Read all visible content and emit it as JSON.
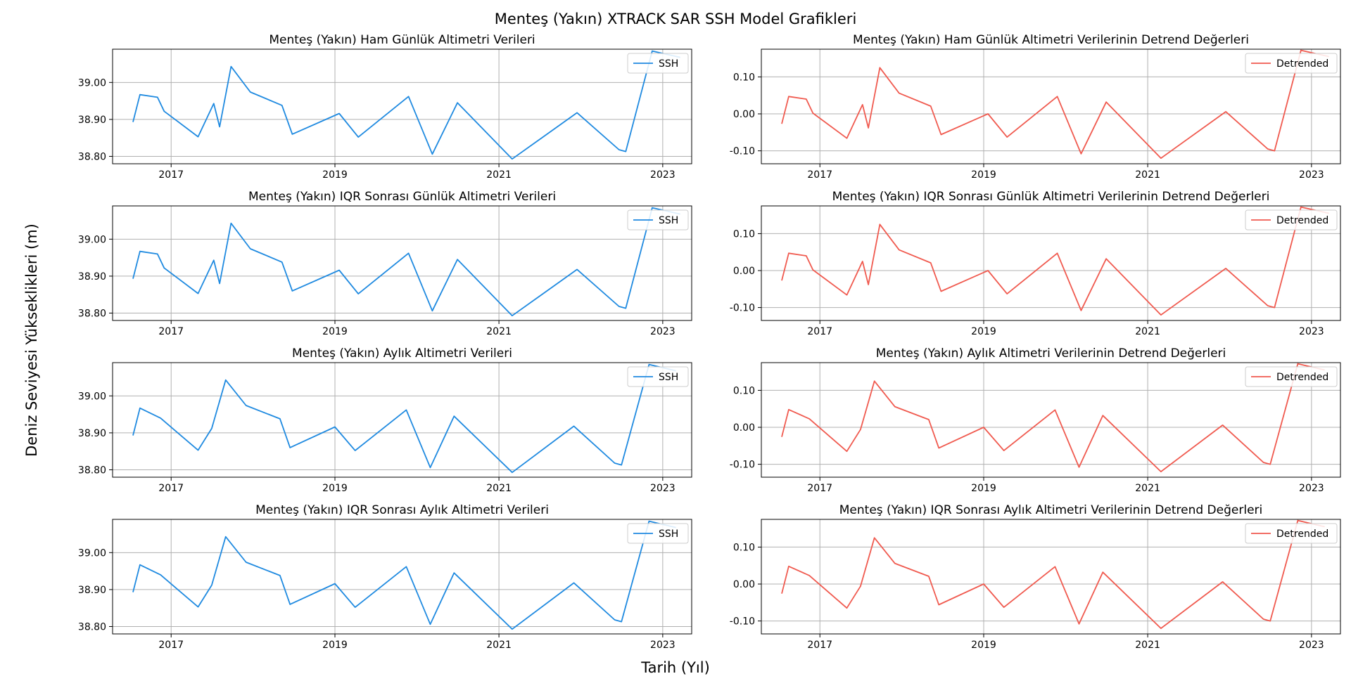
{
  "figure": {
    "title": "Menteş (Yakın) XTRACK SAR SSH Model Grafikleri",
    "xlabel": "Tarih (Yıl)",
    "ylabel": "Deniz Seviyesi Yükseklikleri (m)"
  },
  "colors": {
    "ssh": "#1f8ae0",
    "detrended": "#f05a4f",
    "grid": "#b0b0b0"
  },
  "chart_data": [
    {
      "type": "line",
      "title": "Menteş (Yakın) Ham Günlük Altimetri Verileri",
      "xlabel": "",
      "ylabel": "",
      "xlim": [
        "2016-04-15",
        "2023-05-10"
      ],
      "ylim": [
        38.78,
        39.09
      ],
      "yticks": [
        38.8,
        38.9,
        39.0
      ],
      "ytick_labels": [
        "38.80",
        "38.90",
        "39.00"
      ],
      "xticks": [
        "2017-01-01",
        "2019-01-01",
        "2021-01-01",
        "2023-01-01"
      ],
      "xtick_labels": [
        "2017",
        "2019",
        "2021",
        "2023"
      ],
      "grid": true,
      "legend_position": "top-right",
      "series": [
        {
          "name": "SSH",
          "color": "#1f8ae0",
          "x": [
            "2016-07-15",
            "2016-08-15",
            "2016-11-01",
            "2016-12-01",
            "2017-05-01",
            "2017-07-10",
            "2017-08-05",
            "2017-09-25",
            "2017-12-20",
            "2018-05-10",
            "2018-06-25",
            "2019-01-20",
            "2019-04-15",
            "2019-11-25",
            "2020-03-10",
            "2020-06-30",
            "2021-03-01",
            "2021-12-15",
            "2022-06-20",
            "2022-07-20",
            "2022-11-15",
            "2023-03-20"
          ],
          "y": [
            38.893,
            38.967,
            38.96,
            38.922,
            38.853,
            38.943,
            38.88,
            39.043,
            38.974,
            38.938,
            38.86,
            38.916,
            38.852,
            38.962,
            38.806,
            38.945,
            38.793,
            38.918,
            38.818,
            38.813,
            39.085,
            39.068
          ]
        }
      ]
    },
    {
      "type": "line",
      "title": "Menteş (Yakın) Ham Günlük Altimetri Verilerinin Detrend Değerleri",
      "xlabel": "",
      "ylabel": "",
      "xlim": [
        "2016-04-15",
        "2023-05-10"
      ],
      "ylim": [
        -0.135,
        0.175
      ],
      "yticks": [
        -0.1,
        0.0,
        0.1
      ],
      "ytick_labels": [
        "-0.10",
        "0.00",
        "0.10"
      ],
      "xticks": [
        "2017-01-01",
        "2019-01-01",
        "2021-01-01",
        "2023-01-01"
      ],
      "xtick_labels": [
        "2017",
        "2019",
        "2021",
        "2023"
      ],
      "grid": true,
      "legend_position": "top-right",
      "series": [
        {
          "name": "Detrended",
          "color": "#f05a4f",
          "x": [
            "2016-07-15",
            "2016-08-15",
            "2016-11-01",
            "2016-12-01",
            "2017-05-01",
            "2017-07-10",
            "2017-08-05",
            "2017-09-25",
            "2017-12-20",
            "2018-05-10",
            "2018-06-25",
            "2019-01-20",
            "2019-04-15",
            "2019-11-25",
            "2020-03-10",
            "2020-06-30",
            "2021-03-01",
            "2021-12-15",
            "2022-06-20",
            "2022-07-20",
            "2022-11-15",
            "2023-03-20"
          ],
          "y": [
            -0.027,
            0.047,
            0.04,
            0.002,
            -0.066,
            0.025,
            -0.038,
            0.125,
            0.056,
            0.021,
            -0.056,
            0.0,
            -0.063,
            0.047,
            -0.108,
            0.032,
            -0.12,
            0.006,
            -0.095,
            -0.1,
            0.172,
            0.155
          ]
        }
      ]
    },
    {
      "type": "line",
      "title": "Menteş (Yakın) IQR Sonrası Günlük Altimetri Verileri",
      "xlabel": "",
      "ylabel": "",
      "xlim": [
        "2016-04-15",
        "2023-05-10"
      ],
      "ylim": [
        38.78,
        39.09
      ],
      "yticks": [
        38.8,
        38.9,
        39.0
      ],
      "ytick_labels": [
        "38.80",
        "38.90",
        "39.00"
      ],
      "xticks": [
        "2017-01-01",
        "2019-01-01",
        "2021-01-01",
        "2023-01-01"
      ],
      "xtick_labels": [
        "2017",
        "2019",
        "2021",
        "2023"
      ],
      "grid": true,
      "legend_position": "top-right",
      "series": [
        {
          "name": "SSH",
          "color": "#1f8ae0",
          "x": [
            "2016-07-15",
            "2016-08-15",
            "2016-11-01",
            "2016-12-01",
            "2017-05-01",
            "2017-07-10",
            "2017-08-05",
            "2017-09-25",
            "2017-12-20",
            "2018-05-10",
            "2018-06-25",
            "2019-01-20",
            "2019-04-15",
            "2019-11-25",
            "2020-03-10",
            "2020-06-30",
            "2021-03-01",
            "2021-12-15",
            "2022-06-20",
            "2022-07-20",
            "2022-11-15",
            "2023-03-20"
          ],
          "y": [
            38.893,
            38.967,
            38.96,
            38.922,
            38.853,
            38.943,
            38.88,
            39.043,
            38.974,
            38.938,
            38.86,
            38.916,
            38.852,
            38.962,
            38.806,
            38.945,
            38.793,
            38.918,
            38.818,
            38.813,
            39.085,
            39.068
          ]
        }
      ]
    },
    {
      "type": "line",
      "title": "Menteş (Yakın) IQR Sonrası Günlük Altimetri Verilerinin Detrend Değerleri",
      "xlabel": "",
      "ylabel": "",
      "xlim": [
        "2016-04-15",
        "2023-05-10"
      ],
      "ylim": [
        -0.135,
        0.175
      ],
      "yticks": [
        -0.1,
        0.0,
        0.1
      ],
      "ytick_labels": [
        "-0.10",
        "0.00",
        "0.10"
      ],
      "xticks": [
        "2017-01-01",
        "2019-01-01",
        "2021-01-01",
        "2023-01-01"
      ],
      "xtick_labels": [
        "2017",
        "2019",
        "2021",
        "2023"
      ],
      "grid": true,
      "legend_position": "top-right",
      "series": [
        {
          "name": "Detrended",
          "color": "#f05a4f",
          "x": [
            "2016-07-15",
            "2016-08-15",
            "2016-11-01",
            "2016-12-01",
            "2017-05-01",
            "2017-07-10",
            "2017-08-05",
            "2017-09-25",
            "2017-12-20",
            "2018-05-10",
            "2018-06-25",
            "2019-01-20",
            "2019-04-15",
            "2019-11-25",
            "2020-03-10",
            "2020-06-30",
            "2021-03-01",
            "2021-12-15",
            "2022-06-20",
            "2022-07-20",
            "2022-11-15",
            "2023-03-20"
          ],
          "y": [
            -0.027,
            0.047,
            0.04,
            0.002,
            -0.066,
            0.025,
            -0.038,
            0.125,
            0.056,
            0.021,
            -0.056,
            0.0,
            -0.063,
            0.047,
            -0.108,
            0.032,
            -0.12,
            0.006,
            -0.095,
            -0.1,
            0.172,
            0.155
          ]
        }
      ]
    },
    {
      "type": "line",
      "title": "Menteş (Yakın) Aylık Altimetri Verileri",
      "xlabel": "",
      "ylabel": "",
      "xlim": [
        "2016-04-15",
        "2023-05-10"
      ],
      "ylim": [
        38.78,
        39.09
      ],
      "yticks": [
        38.8,
        38.9,
        39.0
      ],
      "ytick_labels": [
        "38.80",
        "38.90",
        "39.00"
      ],
      "xticks": [
        "2017-01-01",
        "2019-01-01",
        "2021-01-01",
        "2023-01-01"
      ],
      "xtick_labels": [
        "2017",
        "2019",
        "2021",
        "2023"
      ],
      "grid": true,
      "legend_position": "top-right",
      "series": [
        {
          "name": "SSH",
          "color": "#1f8ae0",
          "x": [
            "2016-07-15",
            "2016-08-15",
            "2016-11-15",
            "2017-05-01",
            "2017-07-01",
            "2017-09-01",
            "2017-12-01",
            "2018-05-01",
            "2018-06-15",
            "2019-01-01",
            "2019-04-01",
            "2019-11-15",
            "2020-03-01",
            "2020-06-15",
            "2021-03-01",
            "2021-12-01",
            "2022-06-01",
            "2022-07-01",
            "2022-11-01",
            "2023-03-01"
          ],
          "y": [
            38.893,
            38.967,
            38.94,
            38.853,
            38.912,
            39.043,
            38.974,
            38.938,
            38.86,
            38.916,
            38.852,
            38.962,
            38.806,
            38.945,
            38.793,
            38.918,
            38.818,
            38.813,
            39.085,
            39.068
          ]
        }
      ]
    },
    {
      "type": "line",
      "title": "Menteş (Yakın) Aylık Altimetri Verilerinin Detrend Değerleri",
      "xlabel": "",
      "ylabel": "",
      "xlim": [
        "2016-04-15",
        "2023-05-10"
      ],
      "ylim": [
        -0.135,
        0.175
      ],
      "yticks": [
        -0.1,
        0.0,
        0.1
      ],
      "ytick_labels": [
        "-0.10",
        "0.00",
        "0.10"
      ],
      "xticks": [
        "2017-01-01",
        "2019-01-01",
        "2021-01-01",
        "2023-01-01"
      ],
      "xtick_labels": [
        "2017",
        "2019",
        "2021",
        "2023"
      ],
      "grid": true,
      "legend_position": "top-right",
      "series": [
        {
          "name": "Detrended",
          "color": "#f05a4f",
          "x": [
            "2016-07-15",
            "2016-08-15",
            "2016-11-15",
            "2017-05-01",
            "2017-07-01",
            "2017-09-01",
            "2017-12-01",
            "2018-05-01",
            "2018-06-15",
            "2019-01-01",
            "2019-04-01",
            "2019-11-15",
            "2020-03-01",
            "2020-06-15",
            "2021-03-01",
            "2021-12-01",
            "2022-06-01",
            "2022-07-01",
            "2022-11-01",
            "2023-03-01"
          ],
          "y": [
            -0.026,
            0.048,
            0.023,
            -0.065,
            -0.006,
            0.125,
            0.056,
            0.021,
            -0.056,
            0.0,
            -0.063,
            0.047,
            -0.108,
            0.032,
            -0.12,
            0.006,
            -0.095,
            -0.1,
            0.172,
            0.155
          ]
        }
      ]
    },
    {
      "type": "line",
      "title": "Menteş (Yakın) IQR Sonrası Aylık Altimetri Verileri",
      "xlabel": "",
      "ylabel": "",
      "xlim": [
        "2016-04-15",
        "2023-05-10"
      ],
      "ylim": [
        38.78,
        39.09
      ],
      "yticks": [
        38.8,
        38.9,
        39.0
      ],
      "ytick_labels": [
        "38.80",
        "38.90",
        "39.00"
      ],
      "xticks": [
        "2017-01-01",
        "2019-01-01",
        "2021-01-01",
        "2023-01-01"
      ],
      "xtick_labels": [
        "2017",
        "2019",
        "2021",
        "2023"
      ],
      "grid": true,
      "legend_position": "top-right",
      "series": [
        {
          "name": "SSH",
          "color": "#1f8ae0",
          "x": [
            "2016-07-15",
            "2016-08-15",
            "2016-11-15",
            "2017-05-01",
            "2017-07-01",
            "2017-09-01",
            "2017-12-01",
            "2018-05-01",
            "2018-06-15",
            "2019-01-01",
            "2019-04-01",
            "2019-11-15",
            "2020-03-01",
            "2020-06-15",
            "2021-03-01",
            "2021-12-01",
            "2022-06-01",
            "2022-07-01",
            "2022-11-01",
            "2023-03-01"
          ],
          "y": [
            38.893,
            38.967,
            38.94,
            38.853,
            38.912,
            39.043,
            38.974,
            38.938,
            38.86,
            38.916,
            38.852,
            38.962,
            38.806,
            38.945,
            38.793,
            38.918,
            38.818,
            38.813,
            39.085,
            39.068
          ]
        }
      ]
    },
    {
      "type": "line",
      "title": "Menteş (Yakın) IQR Sonrası Aylık Altimetri Verilerinin Detrend Değerleri",
      "xlabel": "",
      "ylabel": "",
      "xlim": [
        "2016-04-15",
        "2023-05-10"
      ],
      "ylim": [
        -0.135,
        0.175
      ],
      "yticks": [
        -0.1,
        0.0,
        0.1
      ],
      "ytick_labels": [
        "-0.10",
        "0.00",
        "0.10"
      ],
      "xticks": [
        "2017-01-01",
        "2019-01-01",
        "2021-01-01",
        "2023-01-01"
      ],
      "xtick_labels": [
        "2017",
        "2019",
        "2021",
        "2023"
      ],
      "grid": true,
      "legend_position": "top-right",
      "series": [
        {
          "name": "Detrended",
          "color": "#f05a4f",
          "x": [
            "2016-07-15",
            "2016-08-15",
            "2016-11-15",
            "2017-05-01",
            "2017-07-01",
            "2017-09-01",
            "2017-12-01",
            "2018-05-01",
            "2018-06-15",
            "2019-01-01",
            "2019-04-01",
            "2019-11-15",
            "2020-03-01",
            "2020-06-15",
            "2021-03-01",
            "2021-12-01",
            "2022-06-01",
            "2022-07-01",
            "2022-11-01",
            "2023-03-01"
          ],
          "y": [
            -0.026,
            0.048,
            0.023,
            -0.065,
            -0.006,
            0.125,
            0.056,
            0.021,
            -0.056,
            0.0,
            -0.063,
            0.047,
            -0.108,
            0.032,
            -0.12,
            0.006,
            -0.095,
            -0.1,
            0.172,
            0.155
          ]
        }
      ]
    }
  ]
}
